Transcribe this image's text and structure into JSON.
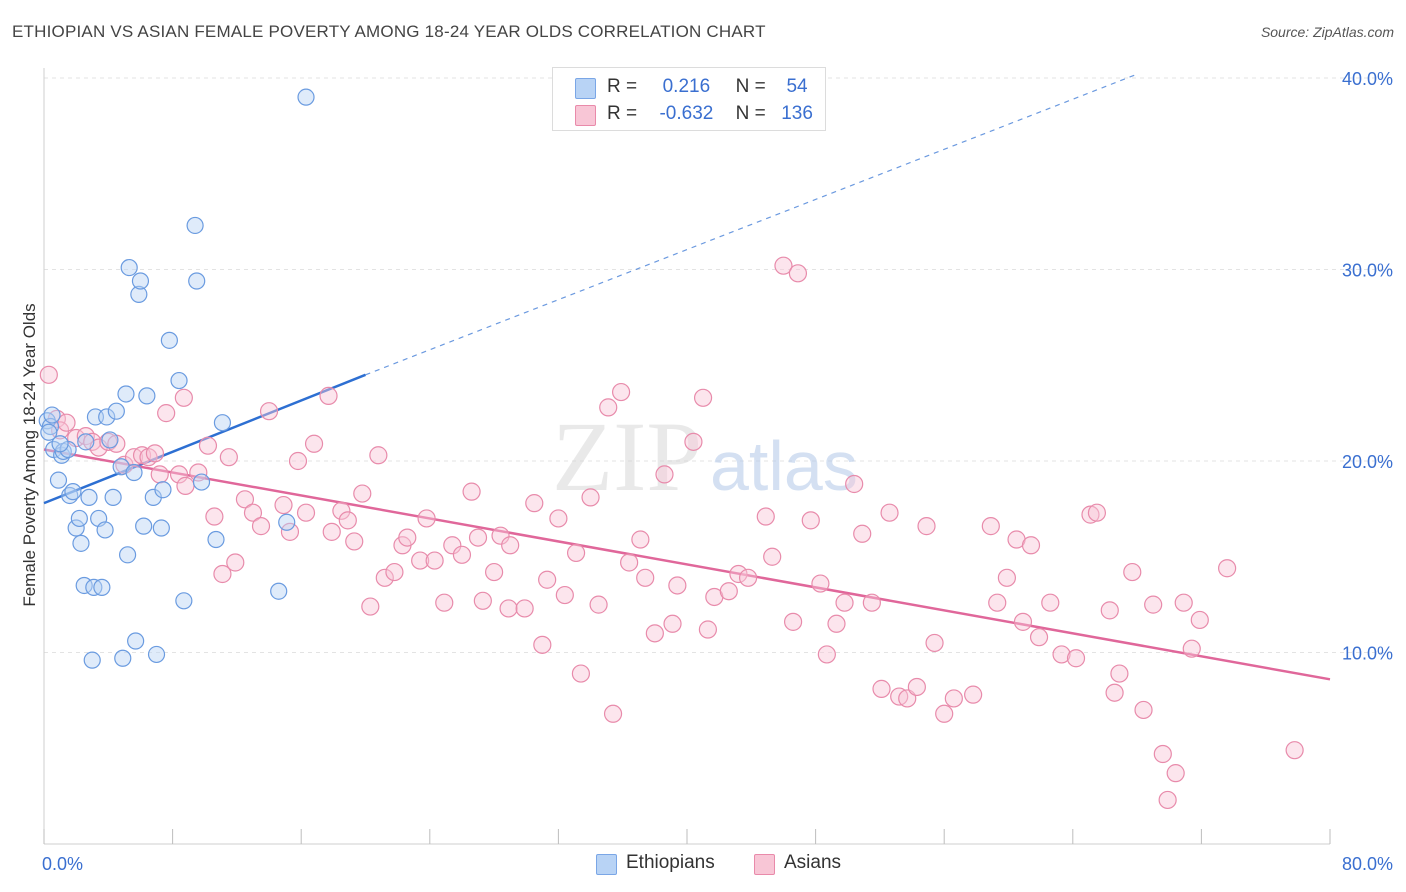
{
  "header": {
    "title": "ETHIOPIAN VS ASIAN FEMALE POVERTY AMONG 18-24 YEAR OLDS CORRELATION CHART",
    "source": "Source: ZipAtlas.com"
  },
  "legend_box": {
    "rows": [
      {
        "r_label": "R =",
        "r_value": "0.216",
        "n_label": "N =",
        "n_value": "54",
        "color": "#b8d3f5",
        "border": "#7aa6e6"
      },
      {
        "r_label": "R =",
        "r_value": "-0.632",
        "n_label": "N =",
        "n_value": "136",
        "color": "#f8c6d6",
        "border": "#e98aaa"
      }
    ]
  },
  "watermark": {
    "zip": "ZIP",
    "atlas": "atlas"
  },
  "colors": {
    "ethiopians_fill": "#b8d3f5",
    "ethiopians_stroke": "#6a9be0",
    "ethiopians_line": "#2d6fd2",
    "asians_fill": "#f8c6d6",
    "asians_stroke": "#e88bab",
    "asians_line": "#e0679a",
    "axis_text": "#3a6fd0",
    "grid": "#e3e3e3"
  },
  "chart_data": {
    "type": "scatter",
    "title": "ETHIOPIAN VS ASIAN FEMALE POVERTY AMONG 18-24 YEAR OLDS CORRELATION CHART",
    "xlabel": "",
    "ylabel": "Female Poverty Among 18-24 Year Olds",
    "xlim": [
      0,
      80
    ],
    "ylim": [
      0,
      40
    ],
    "x_tick_labels": [
      "0.0%",
      "80.0%"
    ],
    "y_ticks": [
      10,
      20,
      30,
      40
    ],
    "y_tick_labels": [
      "10.0%",
      "20.0%",
      "30.0%",
      "40.0%"
    ],
    "grid": true,
    "legend": [
      "Ethiopians",
      "Asians"
    ],
    "series": [
      {
        "name": "Ethiopians",
        "R": 0.216,
        "N": 54,
        "trend": {
          "x": [
            0,
            20
          ],
          "y": [
            17.8,
            24.5
          ],
          "extended_to": [
            68,
            40.2
          ]
        },
        "points": [
          [
            0.2,
            22.1
          ],
          [
            0.4,
            21.8
          ],
          [
            0.6,
            20.6
          ],
          [
            0.9,
            19.0
          ],
          [
            1.1,
            20.3
          ],
          [
            1.2,
            20.5
          ],
          [
            1.5,
            20.6
          ],
          [
            1.6,
            18.2
          ],
          [
            1.8,
            18.4
          ],
          [
            2.0,
            16.5
          ],
          [
            2.2,
            17.0
          ],
          [
            2.3,
            15.7
          ],
          [
            2.5,
            13.5
          ],
          [
            2.8,
            18.1
          ],
          [
            3.0,
            9.6
          ],
          [
            3.1,
            13.4
          ],
          [
            3.2,
            22.3
          ],
          [
            3.4,
            17.0
          ],
          [
            3.6,
            13.4
          ],
          [
            3.8,
            16.4
          ],
          [
            3.9,
            22.3
          ],
          [
            4.1,
            21.1
          ],
          [
            4.3,
            18.1
          ],
          [
            4.5,
            22.6
          ],
          [
            4.8,
            19.7
          ],
          [
            4.9,
            9.7
          ],
          [
            5.1,
            23.5
          ],
          [
            5.2,
            15.1
          ],
          [
            5.3,
            30.1
          ],
          [
            5.6,
            19.4
          ],
          [
            5.7,
            10.6
          ],
          [
            5.9,
            28.7
          ],
          [
            6.0,
            29.4
          ],
          [
            6.2,
            16.6
          ],
          [
            6.4,
            23.4
          ],
          [
            6.8,
            18.1
          ],
          [
            7.0,
            9.9
          ],
          [
            7.3,
            16.5
          ],
          [
            7.4,
            18.5
          ],
          [
            7.8,
            26.3
          ],
          [
            8.4,
            24.2
          ],
          [
            8.7,
            12.7
          ],
          [
            9.4,
            32.3
          ],
          [
            9.5,
            29.4
          ],
          [
            9.8,
            18.9
          ],
          [
            10.7,
            15.9
          ],
          [
            11.1,
            22.0
          ],
          [
            14.6,
            13.2
          ],
          [
            15.1,
            16.8
          ],
          [
            16.3,
            39.0
          ],
          [
            0.3,
            21.5
          ],
          [
            2.6,
            21.0
          ],
          [
            0.5,
            22.4
          ],
          [
            1.0,
            20.9
          ]
        ]
      },
      {
        "name": "Asians",
        "R": -0.632,
        "N": 136,
        "trend": {
          "x": [
            0,
            80
          ],
          "y": [
            20.6,
            8.6
          ]
        },
        "points": [
          [
            0.3,
            24.5
          ],
          [
            0.8,
            22.2
          ],
          [
            1.0,
            21.6
          ],
          [
            1.4,
            22.0
          ],
          [
            2.0,
            21.2
          ],
          [
            2.6,
            21.3
          ],
          [
            3.0,
            21.0
          ],
          [
            3.4,
            20.7
          ],
          [
            4.0,
            21.0
          ],
          [
            4.5,
            20.9
          ],
          [
            5.0,
            19.8
          ],
          [
            5.6,
            20.2
          ],
          [
            6.1,
            20.3
          ],
          [
            6.5,
            20.2
          ],
          [
            6.9,
            20.4
          ],
          [
            7.2,
            19.3
          ],
          [
            7.6,
            22.5
          ],
          [
            8.4,
            19.3
          ],
          [
            8.7,
            23.3
          ],
          [
            8.8,
            18.7
          ],
          [
            9.6,
            19.4
          ],
          [
            10.2,
            20.8
          ],
          [
            10.6,
            17.1
          ],
          [
            11.1,
            14.1
          ],
          [
            11.5,
            20.2
          ],
          [
            11.9,
            14.7
          ],
          [
            12.5,
            18.0
          ],
          [
            13.0,
            17.3
          ],
          [
            13.5,
            16.6
          ],
          [
            14.0,
            22.6
          ],
          [
            14.9,
            17.7
          ],
          [
            15.3,
            16.3
          ],
          [
            15.8,
            20.0
          ],
          [
            16.3,
            17.3
          ],
          [
            16.8,
            20.9
          ],
          [
            17.7,
            23.4
          ],
          [
            17.9,
            16.3
          ],
          [
            18.5,
            17.4
          ],
          [
            18.9,
            16.9
          ],
          [
            19.3,
            15.8
          ],
          [
            19.8,
            18.3
          ],
          [
            20.3,
            12.4
          ],
          [
            20.8,
            20.3
          ],
          [
            21.2,
            13.9
          ],
          [
            21.8,
            14.2
          ],
          [
            22.3,
            15.6
          ],
          [
            22.6,
            16.0
          ],
          [
            23.4,
            14.8
          ],
          [
            23.8,
            17.0
          ],
          [
            24.3,
            14.8
          ],
          [
            24.9,
            12.6
          ],
          [
            25.4,
            15.6
          ],
          [
            26.0,
            15.1
          ],
          [
            26.6,
            18.4
          ],
          [
            27.0,
            16.0
          ],
          [
            27.3,
            12.7
          ],
          [
            28.0,
            14.2
          ],
          [
            28.4,
            16.1
          ],
          [
            28.9,
            12.3
          ],
          [
            29.0,
            15.6
          ],
          [
            29.9,
            12.3
          ],
          [
            30.5,
            17.8
          ],
          [
            31.0,
            10.4
          ],
          [
            31.3,
            13.8
          ],
          [
            32.0,
            17.0
          ],
          [
            32.4,
            13.0
          ],
          [
            33.1,
            15.2
          ],
          [
            33.4,
            8.9
          ],
          [
            34.0,
            18.1
          ],
          [
            34.5,
            12.5
          ],
          [
            35.1,
            22.8
          ],
          [
            35.4,
            6.8
          ],
          [
            35.9,
            23.6
          ],
          [
            36.4,
            14.7
          ],
          [
            37.1,
            15.9
          ],
          [
            37.4,
            13.9
          ],
          [
            38.0,
            11.0
          ],
          [
            38.6,
            19.3
          ],
          [
            39.1,
            11.5
          ],
          [
            39.4,
            13.5
          ],
          [
            40.4,
            21.0
          ],
          [
            41.0,
            23.3
          ],
          [
            41.3,
            11.2
          ],
          [
            41.7,
            12.9
          ],
          [
            42.6,
            13.2
          ],
          [
            43.2,
            14.1
          ],
          [
            43.8,
            13.9
          ],
          [
            44.9,
            17.1
          ],
          [
            45.3,
            15.0
          ],
          [
            46.0,
            30.2
          ],
          [
            46.6,
            11.6
          ],
          [
            46.9,
            29.8
          ],
          [
            47.7,
            16.9
          ],
          [
            48.3,
            13.6
          ],
          [
            48.7,
            9.9
          ],
          [
            49.3,
            11.5
          ],
          [
            49.8,
            12.6
          ],
          [
            50.4,
            18.8
          ],
          [
            50.9,
            16.2
          ],
          [
            51.5,
            12.6
          ],
          [
            52.1,
            8.1
          ],
          [
            52.6,
            17.3
          ],
          [
            53.2,
            7.7
          ],
          [
            53.7,
            7.6
          ],
          [
            54.3,
            8.2
          ],
          [
            54.9,
            16.6
          ],
          [
            55.4,
            10.5
          ],
          [
            56.0,
            6.8
          ],
          [
            56.6,
            7.6
          ],
          [
            57.8,
            7.8
          ],
          [
            58.9,
            16.6
          ],
          [
            59.3,
            12.6
          ],
          [
            59.9,
            13.9
          ],
          [
            60.5,
            15.9
          ],
          [
            60.9,
            11.6
          ],
          [
            61.4,
            15.6
          ],
          [
            61.9,
            10.8
          ],
          [
            62.6,
            12.6
          ],
          [
            63.3,
            9.9
          ],
          [
            64.2,
            9.7
          ],
          [
            65.1,
            17.2
          ],
          [
            65.5,
            17.3
          ],
          [
            66.3,
            12.2
          ],
          [
            66.6,
            7.9
          ],
          [
            66.9,
            8.9
          ],
          [
            67.7,
            14.2
          ],
          [
            68.4,
            7.0
          ],
          [
            69.0,
            12.5
          ],
          [
            69.6,
            4.7
          ],
          [
            69.9,
            2.3
          ],
          [
            70.4,
            3.7
          ],
          [
            70.9,
            12.6
          ],
          [
            71.4,
            10.2
          ],
          [
            71.9,
            11.7
          ],
          [
            73.6,
            14.4
          ],
          [
            77.8,
            4.9
          ]
        ]
      }
    ]
  }
}
